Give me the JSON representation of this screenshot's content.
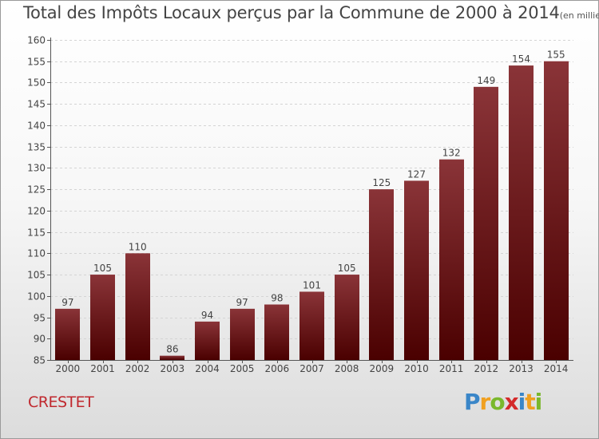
{
  "chart_data": {
    "type": "bar",
    "title": "Total des Impôts Locaux perçus par la Commune de 2000 à 2014",
    "subtitle": "(en milliers d'€)",
    "categories": [
      "2000",
      "2001",
      "2002",
      "2003",
      "2004",
      "2005",
      "2006",
      "2007",
      "2008",
      "2009",
      "2010",
      "2011",
      "2012",
      "2013",
      "2014"
    ],
    "values": [
      97,
      105,
      110,
      86,
      94,
      97,
      98,
      101,
      105,
      125,
      127,
      132,
      149,
      154,
      155
    ],
    "ylim": [
      85,
      160
    ],
    "yticks": [
      85,
      90,
      95,
      100,
      105,
      110,
      115,
      120,
      125,
      130,
      135,
      140,
      145,
      150,
      155,
      160
    ],
    "xlabel": "",
    "ylabel": "",
    "bar_color_top": "#8a3438",
    "bar_color_bottom": "#4a0000",
    "grid": true
  },
  "commune": "CRESTET",
  "logo": {
    "letters": [
      "P",
      "r",
      "o",
      "x",
      "i",
      "t",
      "i"
    ],
    "colors": [
      "#3a86c8",
      "#f0a020",
      "#7ab82c",
      "#d42a2a",
      "#3a86c8",
      "#f0a020",
      "#7ab82c"
    ]
  }
}
